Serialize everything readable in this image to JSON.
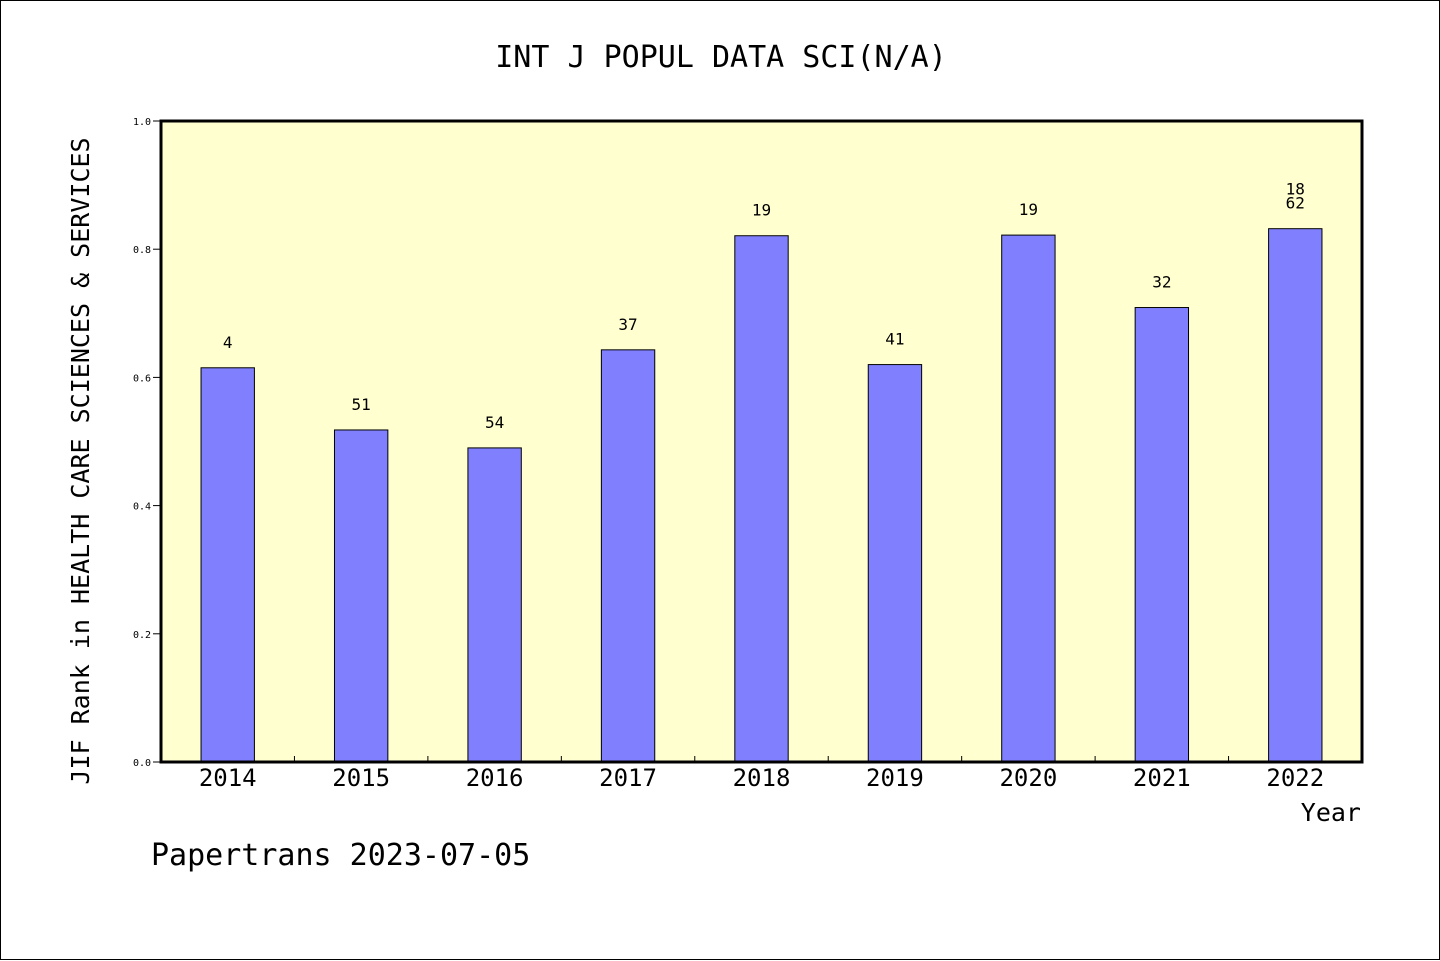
{
  "chart_data": {
    "type": "bar",
    "title": "INT J POPUL DATA SCI(N/A)",
    "ylabel": "JIF Rank in HEALTH CARE SCIENCES & SERVICES",
    "xlabel": "Year",
    "categories": [
      "2014",
      "2015",
      "2016",
      "2017",
      "2018",
      "2019",
      "2020",
      "2021",
      "2022"
    ],
    "values": [
      0.615,
      0.518,
      0.49,
      0.643,
      0.821,
      0.62,
      0.822,
      0.709,
      0.832
    ],
    "bar_labels": [
      [
        "4"
      ],
      [
        "51"
      ],
      [
        "54"
      ],
      [
        "37"
      ],
      [
        "19"
      ],
      [
        "41"
      ],
      [
        "19"
      ],
      [
        "32"
      ],
      [
        "18",
        "62"
      ]
    ],
    "ylim": [
      0,
      1.0
    ],
    "yticks": [
      "0.0",
      "0.2",
      "0.4",
      "0.6",
      "0.8",
      "1.0"
    ],
    "bar_color": "#8080ff",
    "plot_background": "#ffffd0",
    "grid": false,
    "legend": "none"
  },
  "footer": {
    "text": "Papertrans 2023-07-05"
  }
}
